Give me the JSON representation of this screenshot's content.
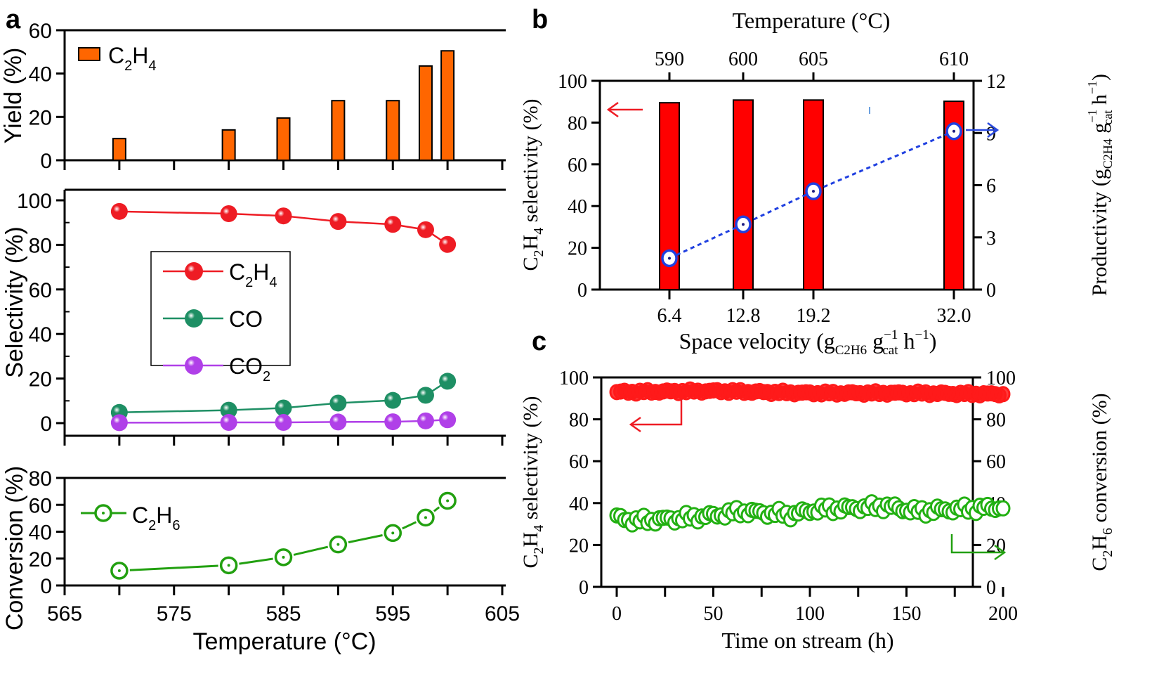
{
  "chart_data": [
    {
      "panel": "a",
      "panel_label": "a",
      "type": "bar",
      "subplot": "yield",
      "title": "",
      "xlabel": "Temperature (°C)",
      "ylabel": "Yield (%)",
      "x": [
        570,
        580,
        585,
        590,
        595,
        598,
        600
      ],
      "xlim": [
        565,
        605
      ],
      "xticks": [
        565,
        575,
        585,
        595,
        605
      ],
      "ylim": [
        0,
        60
      ],
      "yticks": [
        0,
        20,
        40,
        60
      ],
      "legend": "top-left",
      "grid": false,
      "series": [
        {
          "name": "C2H4",
          "label_main": "C",
          "label_sub1": "2",
          "label_mid": "H",
          "label_sub2": "4",
          "color": "#ff6600",
          "values": [
            10,
            14,
            19.5,
            27.5,
            27.5,
            43.5,
            50.5
          ]
        }
      ]
    },
    {
      "panel": "a",
      "type": "line",
      "subplot": "selectivity",
      "ylabel": "Selectivity (%)",
      "x": [
        570,
        580,
        585,
        590,
        595,
        598,
        600
      ],
      "xlim": [
        565,
        605
      ],
      "ylim": [
        0,
        100
      ],
      "yticks": [
        0,
        20,
        40,
        60,
        80,
        100
      ],
      "legend": "center-left",
      "grid": false,
      "series": [
        {
          "name": "C2H4",
          "label_main": "C",
          "label_sub1": "2",
          "label_mid": "H",
          "label_sub2": "4",
          "color": "#ee1c24",
          "values": [
            95,
            94,
            93,
            90.5,
            89.2,
            86.8,
            80.2
          ]
        },
        {
          "name": "CO",
          "label_main": "CO",
          "label_sub1": "",
          "label_mid": "",
          "label_sub2": "",
          "color": "#1e8f64",
          "values": [
            4.8,
            5.8,
            6.8,
            9.0,
            10.2,
            12.5,
            18.8
          ]
        },
        {
          "name": "CO2",
          "label_main": "CO",
          "label_sub1": "2",
          "label_mid": "",
          "label_sub2": "",
          "color": "#b040e8",
          "values": [
            0.2,
            0.3,
            0.3,
            0.5,
            0.6,
            1.0,
            1.5
          ]
        }
      ]
    },
    {
      "panel": "a",
      "type": "line",
      "subplot": "conversion",
      "ylabel": "Conversion (%)",
      "xlabel": "Temperature (°C)",
      "x": [
        570,
        580,
        585,
        590,
        595,
        598,
        600
      ],
      "xlim": [
        565,
        605
      ],
      "xticks": [
        565,
        575,
        585,
        595,
        605
      ],
      "ylim": [
        0,
        80
      ],
      "yticks": [
        0,
        20,
        40,
        60,
        80
      ],
      "legend": "top-left",
      "grid": false,
      "series": [
        {
          "name": "C2H6",
          "label_main": "C",
          "label_sub1": "2",
          "label_mid": "H",
          "label_sub2": "6",
          "color": "#22a010",
          "values": [
            11,
            15,
            21,
            30.5,
            39,
            50.5,
            63
          ]
        }
      ]
    },
    {
      "panel": "b",
      "panel_label": "b",
      "type": "bar",
      "title": "",
      "top_xlabel": "Temperature (°C)",
      "top_xticks": [
        "590",
        "600",
        "605",
        "610"
      ],
      "xlabel_text": "Space velocity (g",
      "xlabel_sub": "C2H6",
      "xlabel_mid": " g",
      "xlabel_sup": "−1",
      "xlabel_sub2": "cat",
      "xlabel_tail": " h",
      "xlabel_sup2": "−1",
      "xlabel_close": ")",
      "categories": [
        "6.4",
        "12.8",
        "19.2",
        "32.0"
      ],
      "x": [
        6.4,
        12.8,
        19.2,
        32.0
      ],
      "ylabel_left": "C2H4 selectivity (%)",
      "ylabel_right": "Productivity (gC2H4 gcat−1 h−1)",
      "ylim_left": [
        0,
        100
      ],
      "yticks_left": [
        0,
        20,
        40,
        60,
        80,
        100
      ],
      "ylim_right": [
        0,
        12
      ],
      "yticks_right": [
        0,
        3,
        6,
        9,
        12
      ],
      "grid": false,
      "series": [
        {
          "name": "C2H4 selectivity",
          "axis": "left",
          "type": "bar",
          "color": "#ff0000",
          "values": [
            89.5,
            90.8,
            90.8,
            90.2
          ]
        },
        {
          "name": "Productivity",
          "axis": "right",
          "type": "line",
          "style": "dotted",
          "color": "#2040e0",
          "values": [
            1.8,
            3.75,
            5.65,
            9.1
          ]
        }
      ]
    },
    {
      "panel": "c",
      "panel_label": "c",
      "type": "scatter",
      "title": "",
      "xlabel": "Time on stream (h)",
      "xlim": [
        0,
        200
      ],
      "xticks": [
        0,
        50,
        100,
        150,
        200
      ],
      "ylabel_left": "C2H4 selectivity (%)",
      "ylabel_right": "C2H6 conversion (%)",
      "ylim_left": [
        0,
        100
      ],
      "ylim_right": [
        0,
        100
      ],
      "yticks": [
        0,
        20,
        40,
        60,
        80,
        100
      ],
      "grid": false,
      "series": [
        {
          "name": "C2H4 selectivity",
          "axis": "left",
          "color": "#ff1a1a",
          "x_step": 2,
          "x_start": 0,
          "x_end": 200,
          "trend": [
            [
              0,
              93
            ],
            [
              50,
              93.5
            ],
            [
              100,
              92.5
            ],
            [
              150,
              92.5
            ],
            [
              200,
              92
            ]
          ]
        },
        {
          "name": "C2H6 conversion",
          "axis": "right",
          "color": "#22b012",
          "x_step": 2,
          "x_start": 0,
          "x_end": 200,
          "trend": [
            [
              0,
              33
            ],
            [
              10,
              31.5
            ],
            [
              30,
              32.5
            ],
            [
              50,
              34
            ],
            [
              65,
              36
            ],
            [
              90,
              34.5
            ],
            [
              105,
              37
            ],
            [
              120,
              37.5
            ],
            [
              140,
              38.5
            ],
            [
              155,
              36
            ],
            [
              175,
              37
            ],
            [
              200,
              38
            ]
          ]
        }
      ]
    }
  ]
}
